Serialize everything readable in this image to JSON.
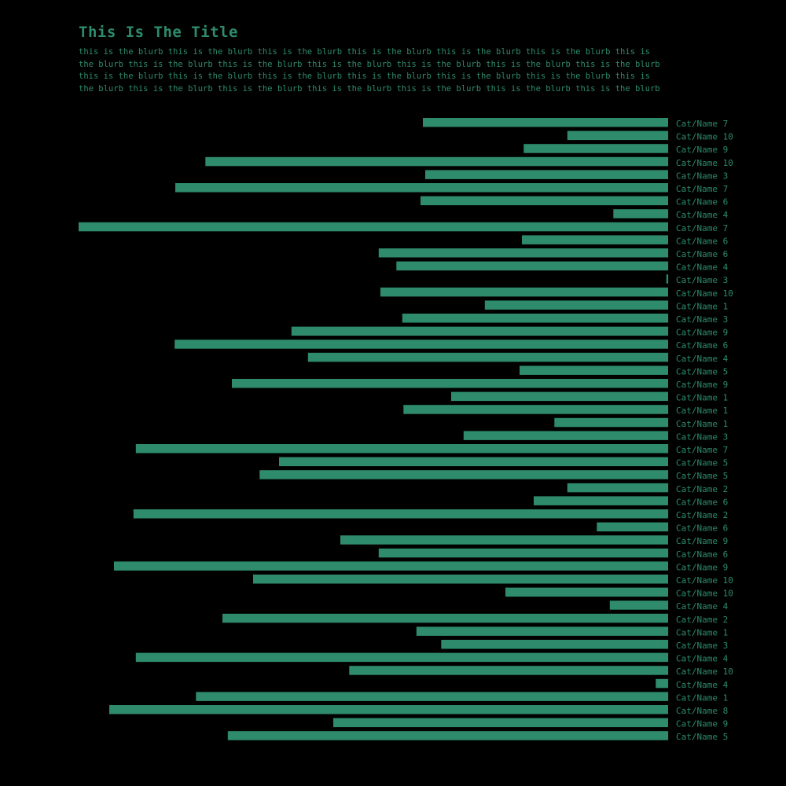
{
  "title": "This Is The Title",
  "blurb": "this is the blurb this is the blurb this is the blurb this is the blurb this is the blurb this is the blurb this is the blurb this is the blurb this is the blurb this is the blurb this is the blurb this is the blurb this is the blurb this is the blurb this is the blurb this is the blurb this is the blurb this is the blurb this is the blurb this is the blurb this is the blurb this is the blurb this is the blurb this is the blurb this is the blurb this is the blurb",
  "colors": {
    "background": "#000000",
    "bar": "#2e8b6c",
    "text": "#2e8b6c"
  },
  "chart_data": {
    "type": "bar",
    "orientation": "horizontal",
    "label_placement": "right",
    "title": "This Is The Title",
    "xlim": [
      0,
      100
    ],
    "grid": false,
    "categories": [
      "Cat/Name 7",
      "Cat/Name 10",
      "Cat/Name 9",
      "Cat/Name 10",
      "Cat/Name 3",
      "Cat/Name 7",
      "Cat/Name 6",
      "Cat/Name 4",
      "Cat/Name 7",
      "Cat/Name 6",
      "Cat/Name 6",
      "Cat/Name 4",
      "Cat/Name 3",
      "Cat/Name 10",
      "Cat/Name 1",
      "Cat/Name 3",
      "Cat/Name 9",
      "Cat/Name 6",
      "Cat/Name 4",
      "Cat/Name 5",
      "Cat/Name 9",
      "Cat/Name 1",
      "Cat/Name 1",
      "Cat/Name 1",
      "Cat/Name 3",
      "Cat/Name 7",
      "Cat/Name 5",
      "Cat/Name 5",
      "Cat/Name 2",
      "Cat/Name 6",
      "Cat/Name 2",
      "Cat/Name 6",
      "Cat/Name 9",
      "Cat/Name 6",
      "Cat/Name 9",
      "Cat/Name 10",
      "Cat/Name 10",
      "Cat/Name 4",
      "Cat/Name 2",
      "Cat/Name 1",
      "Cat/Name 3",
      "Cat/Name 4",
      "Cat/Name 10",
      "Cat/Name 4",
      "Cat/Name 1",
      "Cat/Name 8",
      "Cat/Name 9",
      "Cat/Name 5"
    ],
    "values": [
      41.6,
      17.1,
      24.5,
      78.5,
      41.2,
      83.6,
      42.0,
      9.3,
      100.0,
      24.8,
      49.1,
      46.1,
      0.3,
      48.8,
      31.1,
      45.1,
      63.9,
      83.7,
      61.1,
      25.2,
      74.0,
      36.8,
      44.9,
      19.3,
      34.7,
      90.3,
      66.0,
      69.3,
      17.1,
      22.8,
      90.7,
      12.1,
      55.6,
      49.1,
      94.0,
      70.4,
      27.6,
      9.9,
      75.6,
      42.7,
      38.5,
      90.3,
      54.1,
      2.1,
      80.1,
      94.8,
      56.8,
      74.7
    ]
  }
}
